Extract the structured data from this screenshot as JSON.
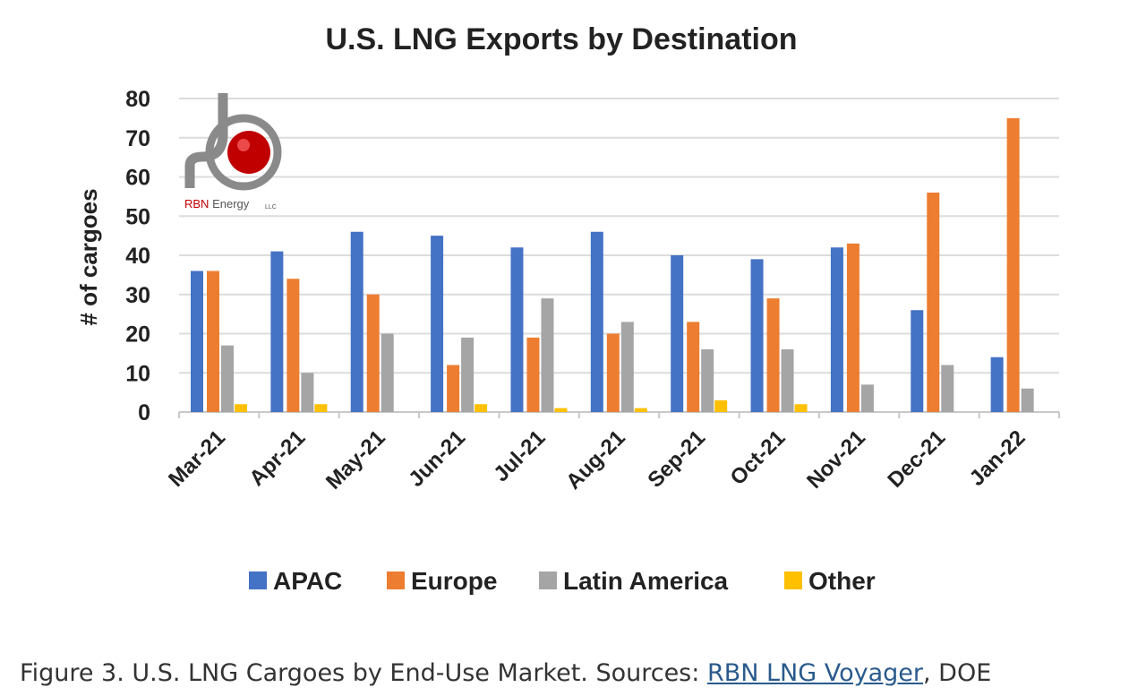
{
  "chart_data": {
    "type": "bar",
    "title": "U.S. LNG Exports by Destination",
    "xlabel": "",
    "ylabel": "# of cargoes",
    "ylim": [
      0,
      80
    ],
    "yticks": [
      0,
      10,
      20,
      30,
      40,
      50,
      60,
      70,
      80
    ],
    "grid": true,
    "legend": "bottom",
    "categories": [
      "Mar-21",
      "Apr-21",
      "May-21",
      "Jun-21",
      "Jul-21",
      "Aug-21",
      "Sep-21",
      "Oct-21",
      "Nov-21",
      "Dec-21",
      "Jan-22"
    ],
    "series": [
      {
        "name": "APAC",
        "color": "#4472c4",
        "values": [
          36,
          41,
          46,
          45,
          42,
          46,
          40,
          39,
          42,
          26,
          14
        ]
      },
      {
        "name": "Europe",
        "color": "#ed7d31",
        "values": [
          36,
          34,
          30,
          12,
          19,
          20,
          23,
          29,
          43,
          56,
          75
        ]
      },
      {
        "name": "Latin America",
        "color": "#a5a5a5",
        "values": [
          17,
          10,
          20,
          19,
          29,
          23,
          16,
          16,
          7,
          12,
          6
        ]
      },
      {
        "name": "Other",
        "color": "#ffc000",
        "values": [
          2,
          2,
          0,
          2,
          1,
          1,
          3,
          2,
          0,
          0,
          0
        ]
      }
    ]
  },
  "logo": {
    "text": "RBN Energy",
    "suffix": "LLC"
  },
  "caption": {
    "prefix": "Figure 3. U.S. LNG Cargoes by End-Use Market. Sources: ",
    "link": "RBN LNG Voyager",
    "suffix": ", DOE"
  }
}
